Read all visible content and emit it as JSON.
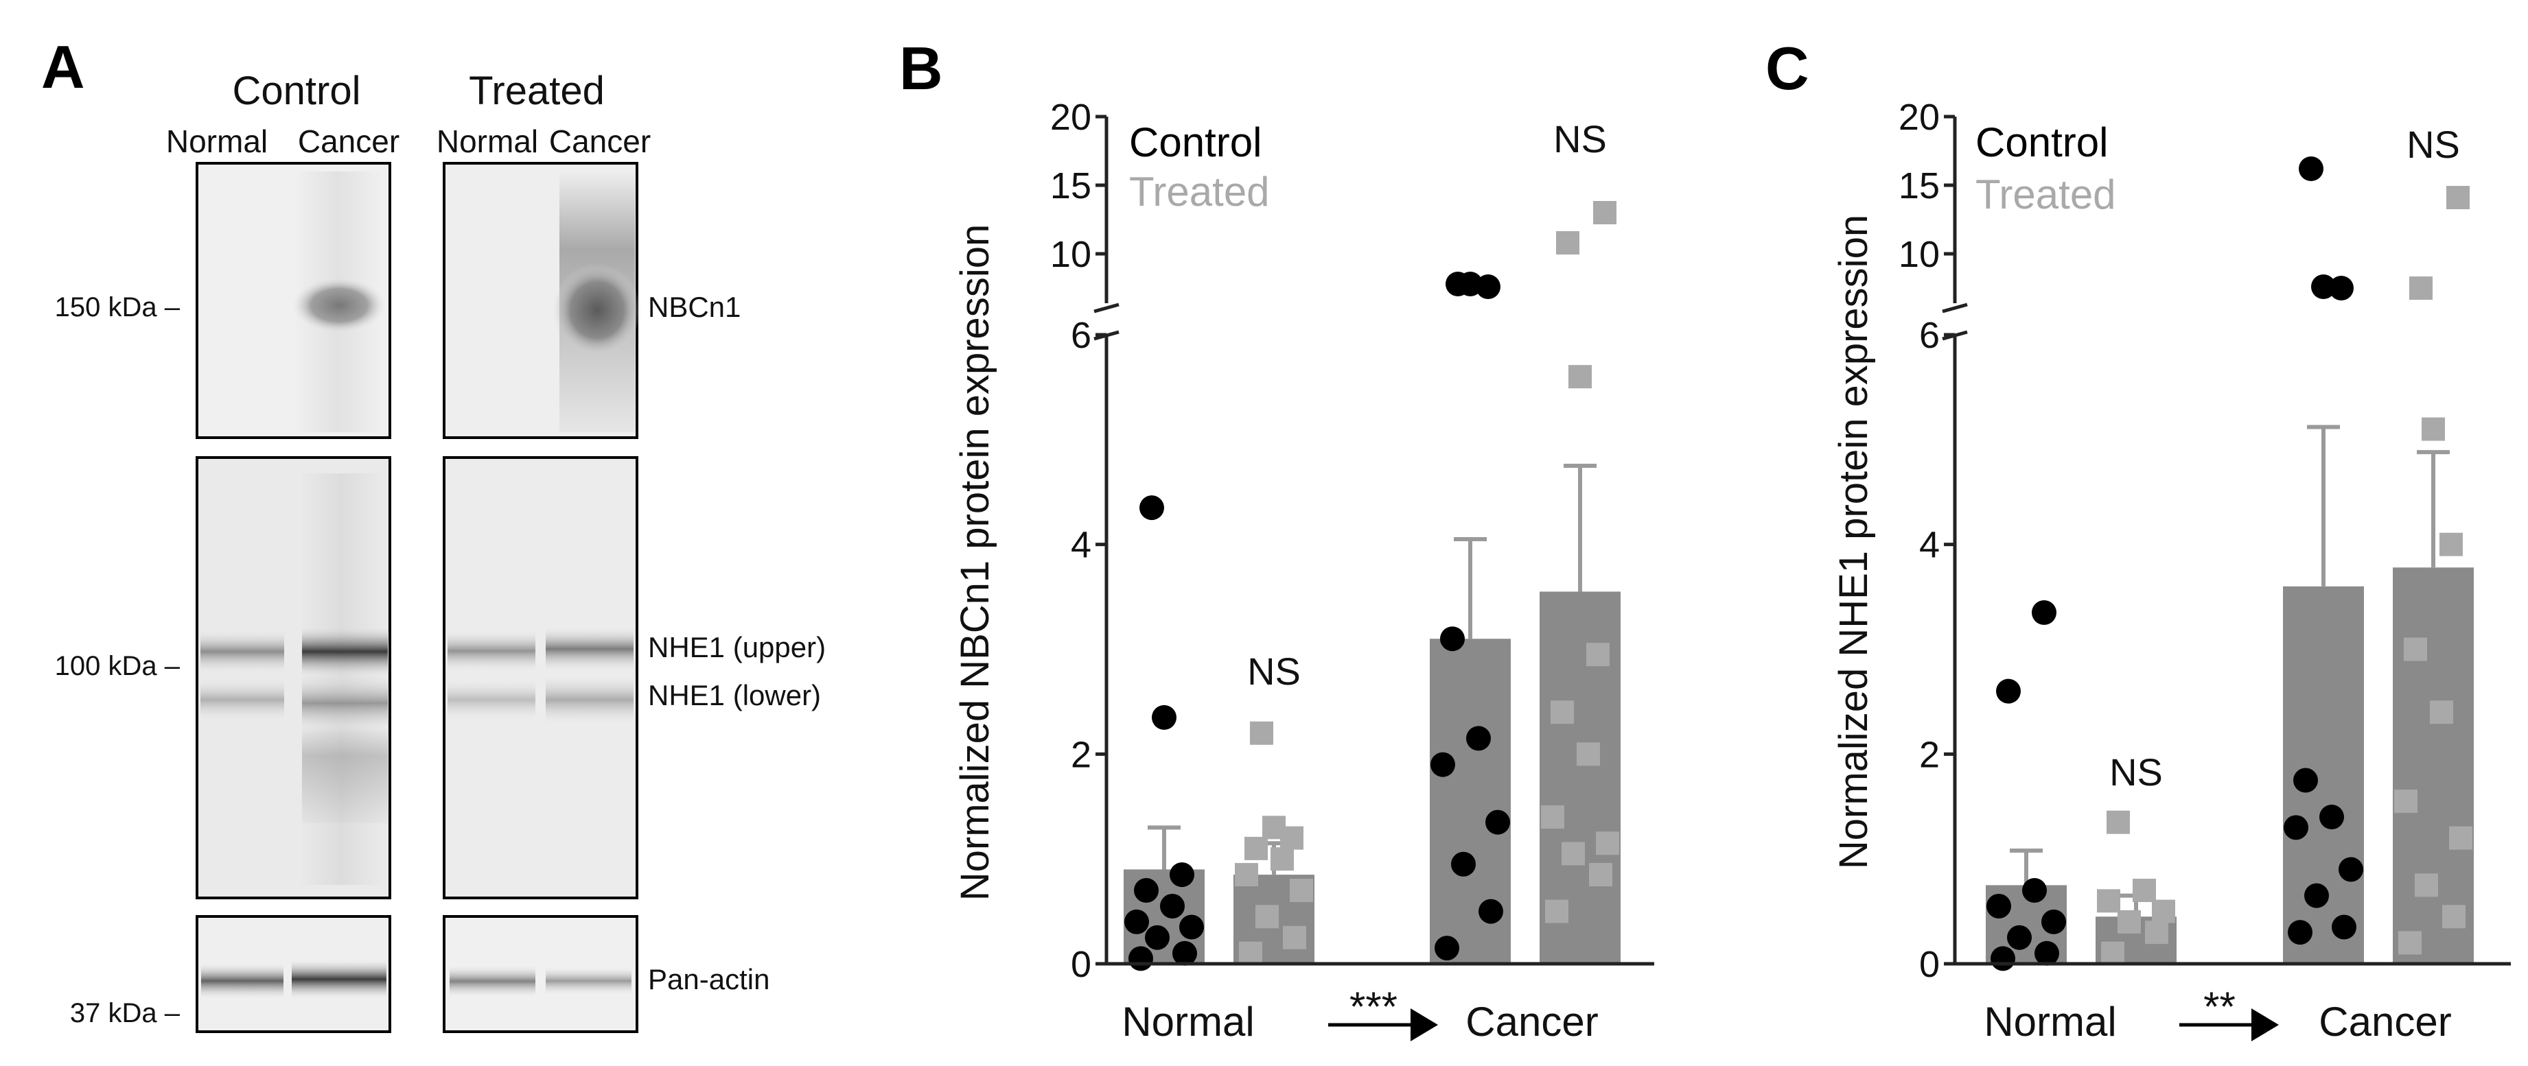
{
  "colors": {
    "control": "#000000",
    "treated": "#a9a9a9",
    "bar": "#8a8a8a",
    "errorbar": "#9a9a9a",
    "axis": "#222222"
  },
  "blot": {
    "panel_label": "A",
    "groups": [
      "Control",
      "Treated"
    ],
    "lanes": [
      "Normal",
      "Cancer",
      "Normal",
      "Cancer"
    ],
    "markers": [
      "150 kDa –",
      "100 kDa –",
      "37 kDa –"
    ],
    "band_labels": [
      "NBCn1",
      "NHE1 (upper)",
      "NHE1 (lower)",
      "Pan-actin"
    ]
  },
  "chart_data": [
    {
      "type": "bar",
      "panel_label": "B",
      "ylabel": "Normalized NBCn1 protein expression",
      "categories": [
        "Normal",
        "Cancer"
      ],
      "comparison_label": "***",
      "legend": [
        "Control",
        "Treated"
      ],
      "ns_labels": [
        "NS",
        "NS"
      ],
      "y_axis": {
        "lower": {
          "range": [
            0,
            6
          ],
          "ticks": [
            0,
            2,
            4,
            6
          ]
        },
        "upper": {
          "range": [
            6,
            20
          ],
          "ticks": [
            10,
            15,
            20
          ]
        }
      },
      "series": [
        {
          "name": "Control",
          "means": [
            0.9,
            3.1
          ],
          "sem": [
            0.4,
            0.95
          ],
          "points": [
            [
              0.05,
              0.1,
              0.25,
              0.35,
              0.4,
              0.55,
              0.7,
              0.85,
              2.35,
              4.35
            ],
            [
              0.15,
              0.5,
              0.95,
              1.35,
              1.9,
              2.15,
              3.1,
              7.6,
              7.8,
              7.8
            ]
          ]
        },
        {
          "name": "Treated",
          "means": [
            0.85,
            3.55
          ],
          "sem": [
            0.3,
            1.2
          ],
          "points": [
            [
              0.1,
              0.25,
              0.45,
              0.7,
              0.85,
              1.0,
              1.1,
              1.2,
              1.3,
              2.2
            ],
            [
              0.5,
              0.85,
              1.05,
              1.15,
              1.4,
              2.0,
              2.4,
              2.95,
              5.6,
              10.8,
              13.0
            ]
          ]
        }
      ]
    },
    {
      "type": "bar",
      "panel_label": "C",
      "ylabel": "Normalized NHE1 protein expression",
      "categories": [
        "Normal",
        "Cancer"
      ],
      "comparison_label": "**",
      "legend": [
        "Control",
        "Treated"
      ],
      "ns_labels": [
        "NS",
        "NS"
      ],
      "y_axis": {
        "lower": {
          "range": [
            0,
            6
          ],
          "ticks": [
            0,
            2,
            4,
            6
          ]
        },
        "upper": {
          "range": [
            6,
            20
          ],
          "ticks": [
            10,
            15,
            20
          ]
        }
      },
      "series": [
        {
          "name": "Control",
          "means": [
            0.75,
            3.6
          ],
          "sem": [
            0.33,
            1.52
          ],
          "points": [
            [
              0.05,
              0.1,
              0.25,
              0.4,
              0.55,
              0.7,
              2.6,
              3.35
            ],
            [
              0.3,
              0.35,
              0.65,
              0.9,
              1.3,
              1.4,
              1.75,
              7.5,
              7.6,
              16.2
            ]
          ]
        },
        {
          "name": "Treated",
          "means": [
            0.45,
            3.78
          ],
          "sem": [
            0.2,
            1.1
          ],
          "points": [
            [
              0.1,
              0.3,
              0.4,
              0.5,
              0.6,
              0.7,
              1.35
            ],
            [
              0.2,
              0.45,
              0.75,
              1.2,
              1.55,
              2.4,
              3.0,
              4.0,
              5.1,
              7.5,
              14.1
            ]
          ]
        }
      ]
    }
  ]
}
